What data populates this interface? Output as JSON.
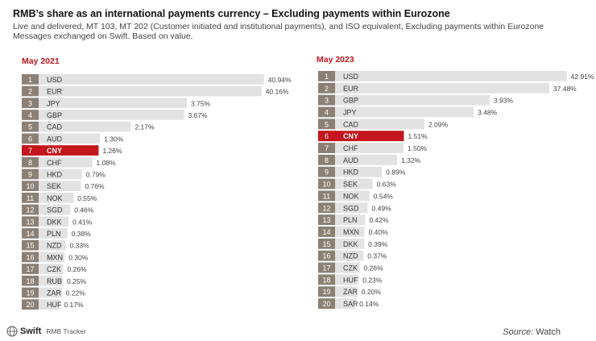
{
  "title": "RMB’s share as an international payments currency – Excluding payments within Eurozone",
  "subtitle": "Live and delivered, MT 103, MT 202 (Customer initiated and institutional payments), and ISO equivalent, Excluding payments within Eurozone Messages exchanged on Swift. Based on value.",
  "footer": {
    "brand": "Swift",
    "tracker": "RMB Tracker",
    "source_label": "Source:",
    "source_value": "Watch"
  },
  "colors": {
    "bar": "#e2e2e2",
    "rank_box": "#8c8075",
    "highlight": "#c4161c",
    "period": "#c4161c"
  },
  "highlight_currency": "CNY",
  "chart_data": [
    {
      "type": "bar",
      "orientation": "horizontal",
      "title": "May 2021",
      "ranks": [
        "1",
        "2",
        "3",
        "4",
        "5",
        "6",
        "7",
        "8",
        "9",
        "10",
        "11",
        "12",
        "13",
        "14",
        "15",
        "16",
        "17",
        "18",
        "19",
        "20"
      ],
      "categories": [
        "USD",
        "EUR",
        "JPY",
        "GBP",
        "CAD",
        "AUD",
        "CNY",
        "CHF",
        "HKD",
        "SEK",
        "NOK",
        "SGD",
        "DKK",
        "PLN",
        "NZD",
        "MXN",
        "CZK",
        "RUB",
        "ZAR",
        "HUF"
      ],
      "values": [
        40.94,
        40.16,
        3.75,
        3.67,
        2.17,
        1.3,
        1.26,
        1.08,
        0.79,
        0.76,
        0.55,
        0.46,
        0.41,
        0.38,
        0.33,
        0.3,
        0.26,
        0.25,
        0.22,
        0.17
      ],
      "labels": [
        "40.94%",
        "40.16%",
        "3.75%",
        "3.67%",
        "2.17%",
        "1.30%",
        "1.26%",
        "1.08%",
        "0.79%",
        "0.76%",
        "0.55%",
        "0.46%",
        "0.41%",
        "0.38%",
        "0.33%",
        "0.30%",
        "0.26%",
        "0.25%",
        "0.22%",
        "0.17%"
      ]
    },
    {
      "type": "bar",
      "orientation": "horizontal",
      "title": "May 2023",
      "ranks": [
        "1",
        "2",
        "3",
        "4",
        "5",
        "6",
        "7",
        "8",
        "9",
        "10",
        "11",
        "12",
        "13",
        "14",
        "15",
        "16",
        "17",
        "18",
        "19",
        "20"
      ],
      "categories": [
        "USD",
        "EUR",
        "GBP",
        "JPY",
        "CAD",
        "CNY",
        "CHF",
        "AUD",
        "HKD",
        "SEK",
        "NOK",
        "SGD",
        "PLN",
        "MXN",
        "DKK",
        "NZD",
        "CZK",
        "HUF",
        "ZAR",
        "SAR"
      ],
      "values": [
        42.91,
        37.48,
        3.93,
        3.48,
        2.09,
        1.51,
        1.5,
        1.32,
        0.89,
        0.63,
        0.54,
        0.49,
        0.42,
        0.4,
        0.39,
        0.37,
        0.26,
        0.23,
        0.2,
        0.14
      ],
      "labels": [
        "42.91%",
        "37.48%",
        "3.93%",
        "3.48%",
        "2.09%",
        "1.51%",
        "1.50%",
        "1.32%",
        "0.89%",
        "0.63%",
        "0.54%",
        "0.49%",
        "0.42%",
        "0.40%",
        "0.39%",
        "0.37%",
        "0.26%",
        "0.23%",
        "0.20%",
        "0.14%"
      ]
    }
  ]
}
